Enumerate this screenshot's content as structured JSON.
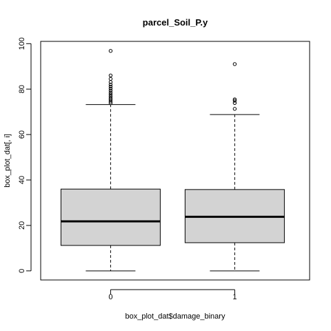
{
  "chart_data": {
    "type": "box",
    "title": "parcel_Soil_P.y",
    "xlabel": "box_plot_dat$damage_binary",
    "ylabel": "box_plot_dat[, i]",
    "categories": [
      "0",
      "1"
    ],
    "ylim": [
      -4,
      101
    ],
    "yticks": [
      0,
      20,
      40,
      60,
      80,
      100
    ],
    "ytick_labels": [
      "0",
      "20",
      "40",
      "60",
      "80",
      "100"
    ],
    "grid": false,
    "legend": "none",
    "box_fill": "#d3d3d3",
    "stroke": "#000000",
    "boxes": [
      {
        "category": "0",
        "whisker_low": 0,
        "q1": 11.2,
        "median": 21.8,
        "q3": 36.0,
        "whisker_high": 73.2,
        "outliers": [
          73.8,
          74.5,
          75.3,
          76.0,
          76.8,
          77.6,
          78.4,
          79.3,
          80.2,
          81.1,
          82.0,
          83.1,
          84.5,
          86.0,
          96.8
        ]
      },
      {
        "category": "1",
        "whisker_low": 0,
        "q1": 12.4,
        "median": 23.8,
        "q3": 35.8,
        "whisker_high": 68.8,
        "outliers": [
          71.3,
          73.9,
          74.9,
          75.5,
          91.0
        ]
      }
    ]
  }
}
